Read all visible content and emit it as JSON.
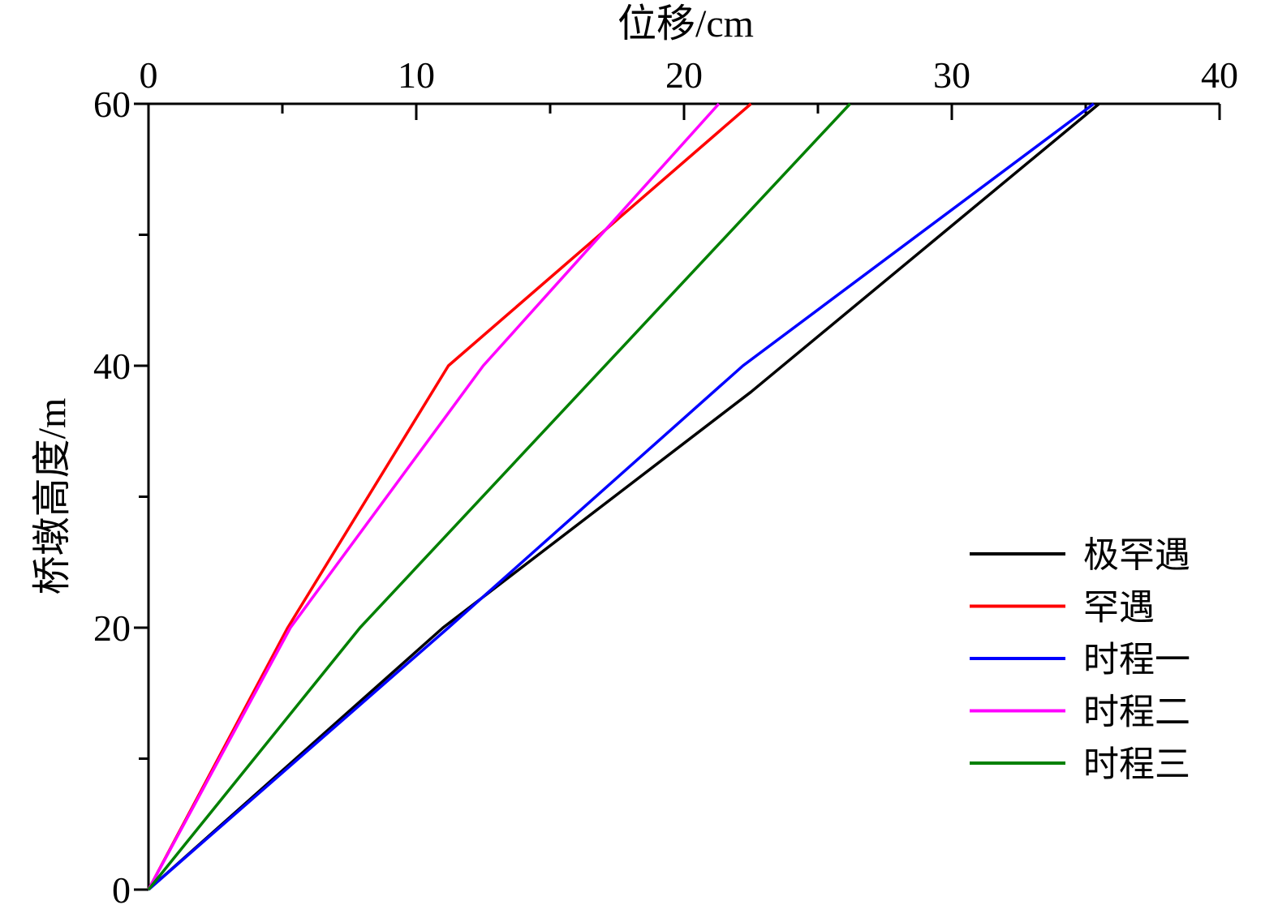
{
  "chart_data": {
    "type": "line",
    "xlabel": "位移/cm",
    "ylabel": "桥墩高度/m",
    "xlim": [
      0,
      40
    ],
    "ylim": [
      0,
      60
    ],
    "x_ticks": [
      "0",
      "10",
      "20",
      "30",
      "40"
    ],
    "y_ticks": [
      "0",
      "20",
      "40",
      "60"
    ],
    "x_axis_position": "top",
    "grid": false,
    "legend_position": "right",
    "series": [
      {
        "name": "极罕遇",
        "color": "#000000",
        "points": [
          [
            0,
            0
          ],
          [
            11,
            20
          ],
          [
            22.5,
            38
          ],
          [
            35.5,
            60
          ]
        ]
      },
      {
        "name": "罕遇",
        "color": "#ff0000",
        "points": [
          [
            0,
            0
          ],
          [
            5.2,
            20
          ],
          [
            11.2,
            40
          ],
          [
            22.5,
            60
          ]
        ]
      },
      {
        "name": "时程一",
        "color": "#0000ff",
        "points": [
          [
            0,
            0
          ],
          [
            11.2,
            20
          ],
          [
            22.2,
            40
          ],
          [
            35.3,
            60
          ]
        ]
      },
      {
        "name": "时程二",
        "color": "#ff00ff",
        "points": [
          [
            0,
            0
          ],
          [
            5.3,
            20
          ],
          [
            12.5,
            40
          ],
          [
            21.3,
            60
          ]
        ]
      },
      {
        "name": "时程三",
        "color": "#008000",
        "points": [
          [
            0,
            0
          ],
          [
            7.9,
            20
          ],
          [
            26.2,
            60
          ]
        ]
      }
    ]
  }
}
